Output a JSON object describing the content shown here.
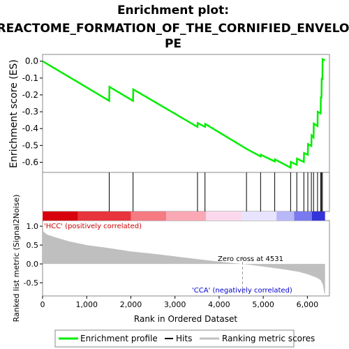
{
  "chart_data": {
    "type": "line",
    "title": "Enrichment plot:",
    "subtitle_line1": "REACTOME_FORMATION_OF_THE_CORNIFIED_ENVELO",
    "subtitle_line2": "PE",
    "panels": {
      "enrichment": {
        "ylabel": "Enrichment score (ES)",
        "ylim": [
          -0.66,
          0.04
        ],
        "yticks": [
          "0.0",
          "-0.1",
          "-0.2",
          "-0.3",
          "-0.4",
          "-0.5",
          "-0.6"
        ],
        "ytick_values": [
          0.0,
          -0.1,
          -0.2,
          -0.3,
          -0.4,
          -0.5,
          -0.6
        ],
        "series": {
          "name": "Enrichment profile",
          "color": "#00ee00",
          "points": [
            [
              0,
              0.0
            ],
            [
              1510,
              -0.235
            ],
            [
              1515,
              -0.152
            ],
            [
              2050,
              -0.235
            ],
            [
              2055,
              -0.167
            ],
            [
              3510,
              -0.39
            ],
            [
              3515,
              -0.367
            ],
            [
              3680,
              -0.39
            ],
            [
              3685,
              -0.372
            ],
            [
              4620,
              -0.52
            ],
            [
              4940,
              -0.565
            ],
            [
              4945,
              -0.555
            ],
            [
              5260,
              -0.595
            ],
            [
              5265,
              -0.583
            ],
            [
              5620,
              -0.632
            ],
            [
              5625,
              -0.598
            ],
            [
              5760,
              -0.615
            ],
            [
              5765,
              -0.578
            ],
            [
              5920,
              -0.598
            ],
            [
              5925,
              -0.545
            ],
            [
              6010,
              -0.555
            ],
            [
              6015,
              -0.492
            ],
            [
              6090,
              -0.503
            ],
            [
              6095,
              -0.44
            ],
            [
              6140,
              -0.452
            ],
            [
              6145,
              -0.37
            ],
            [
              6230,
              -0.385
            ],
            [
              6235,
              -0.3
            ],
            [
              6300,
              -0.31
            ],
            [
              6305,
              -0.21
            ],
            [
              6320,
              -0.218
            ],
            [
              6325,
              -0.1
            ],
            [
              6340,
              -0.11
            ],
            [
              6345,
              0.012
            ],
            [
              6400,
              0.005
            ]
          ]
        }
      },
      "hits": {
        "positions": [
          1510,
          2050,
          3510,
          3680,
          4620,
          4940,
          5260,
          5620,
          5760,
          5920,
          6010,
          6090,
          6140,
          6230,
          6300,
          6320,
          6340
        ]
      },
      "ranked_metric": {
        "ylabel": "Ranked list metric (Signal2Noise)",
        "ylim": [
          -0.85,
          1.15
        ],
        "yticks": [
          "1.0",
          "0.5",
          "0.0",
          "-0.5"
        ],
        "ytick_values": [
          1.0,
          0.5,
          0.0,
          -0.5
        ],
        "profile": [
          [
            0,
            1.1
          ],
          [
            20,
            0.86
          ],
          [
            100,
            0.78
          ],
          [
            300,
            0.7
          ],
          [
            600,
            0.6
          ],
          [
            1000,
            0.5
          ],
          [
            1500,
            0.42
          ],
          [
            2000,
            0.33
          ],
          [
            2500,
            0.27
          ],
          [
            3000,
            0.2
          ],
          [
            3500,
            0.13
          ],
          [
            4000,
            0.06
          ],
          [
            4531,
            0.0
          ],
          [
            5000,
            -0.07
          ],
          [
            5500,
            -0.15
          ],
          [
            5800,
            -0.21
          ],
          [
            6000,
            -0.27
          ],
          [
            6200,
            -0.36
          ],
          [
            6300,
            -0.43
          ],
          [
            6350,
            -0.55
          ],
          [
            6380,
            -0.75
          ],
          [
            6400,
            -0.82
          ]
        ],
        "zero_cross_label": "Zero cross at 4531",
        "zero_cross": 4531,
        "pos_label": "'HCC' (positively correlated)",
        "neg_label": "'CCA' (negatively correlated)"
      }
    },
    "xaxis": {
      "xlabel": "Rank in Ordered Dataset",
      "xlim": [
        0,
        6500
      ],
      "xticks": [
        "0",
        "1,000",
        "2,000",
        "3,000",
        "4,000",
        "5,000",
        "6,000"
      ],
      "xtick_values": [
        0,
        1000,
        2000,
        3000,
        4000,
        5000,
        6000
      ]
    },
    "legend": {
      "placement": "bottom",
      "items": [
        {
          "label": "Enrichment profile",
          "color": "#00ee00"
        },
        {
          "label": "Hits",
          "color": "#000000"
        },
        {
          "label": "Ranking metric scores",
          "color": "#c0c0c0"
        }
      ]
    },
    "colors": {
      "pos_label": "#cc0000",
      "neg_label": "#0000cc",
      "zero_line": "#999999"
    },
    "heatmap_stops": [
      [
        0,
        "#d8000c"
      ],
      [
        800,
        "#e8343c"
      ],
      [
        2000,
        "#f57a82"
      ],
      [
        2800,
        "#f9a8b4"
      ],
      [
        3700,
        "#fcd8ec"
      ],
      [
        4500,
        "#e8e4ff"
      ],
      [
        5300,
        "#b8b8f8"
      ],
      [
        5700,
        "#7a7af0"
      ],
      [
        6100,
        "#3434d8"
      ],
      [
        6400,
        "#1010a8"
      ]
    ]
  }
}
